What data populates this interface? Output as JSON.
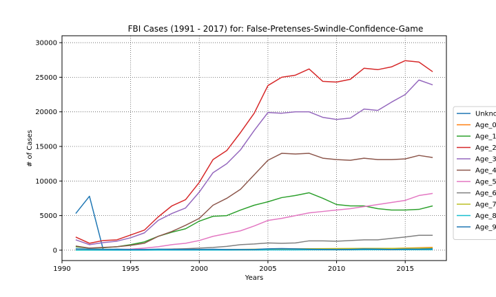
{
  "chart_data": {
    "type": "line",
    "title": "FBI Cases (1991 - 2017) for: False-Pretenses-Swindle-Confidence-Game",
    "xlabel": "Years",
    "ylabel": "# of Cases",
    "xlim": [
      1990,
      2018
    ],
    "ylim": [
      -1500,
      31000
    ],
    "xticks": [
      1990,
      1995,
      2000,
      2005,
      2010,
      2015
    ],
    "yticks": [
      0,
      5000,
      10000,
      15000,
      20000,
      25000,
      30000
    ],
    "grid": true,
    "grid_style": "dotted",
    "legend_position": "right (clipped)",
    "x": [
      1991,
      1992,
      1993,
      1994,
      1995,
      1996,
      1997,
      1998,
      1999,
      2000,
      2001,
      2002,
      2003,
      2004,
      2005,
      2006,
      2007,
      2008,
      2009,
      2010,
      2011,
      2012,
      2013,
      2014,
      2015,
      2016,
      2017
    ],
    "series": [
      {
        "name": "Unkno",
        "color": "#1f77b4",
        "values": [
          5300,
          7800,
          100,
          150,
          100,
          100,
          100,
          100,
          100,
          100,
          100,
          80,
          80,
          80,
          150,
          150,
          100,
          100,
          100,
          80,
          80,
          100,
          100,
          80,
          80,
          100,
          100
        ]
      },
      {
        "name": "Age_0",
        "color": "#ff7f0e",
        "values": [
          20,
          20,
          20,
          20,
          20,
          20,
          20,
          20,
          30,
          30,
          30,
          30,
          40,
          50,
          60,
          70,
          80,
          100,
          120,
          150,
          170,
          200,
          220,
          250,
          300,
          350,
          400
        ]
      },
      {
        "name": "Age_1",
        "color": "#2ca02c",
        "values": [
          500,
          300,
          350,
          500,
          800,
          1200,
          2000,
          2600,
          3100,
          4200,
          4900,
          5000,
          5800,
          6500,
          7000,
          7600,
          7900,
          8300,
          7500,
          6600,
          6400,
          6400,
          6000,
          5800,
          5800,
          5900,
          6400
        ]
      },
      {
        "name": "Age_2",
        "color": "#d62728",
        "values": [
          1900,
          1000,
          1400,
          1500,
          2200,
          2900,
          4800,
          6400,
          7300,
          9800,
          13100,
          14400,
          17000,
          19800,
          23800,
          25000,
          25300,
          26200,
          24400,
          24300,
          24700,
          26300,
          26100,
          26500,
          27400,
          27200,
          25800
        ]
      },
      {
        "name": "Age_3",
        "color": "#9467bd",
        "values": [
          1500,
          800,
          1100,
          1300,
          1800,
          2500,
          4300,
          5300,
          6100,
          8400,
          11200,
          12500,
          14500,
          17300,
          19900,
          19800,
          20000,
          20000,
          19200,
          18900,
          19100,
          20400,
          20200,
          21400,
          22500,
          24600,
          23900
        ]
      },
      {
        "name": "Age_4",
        "color": "#8c564b",
        "values": [
          600,
          300,
          400,
          500,
          700,
          1000,
          2000,
          2700,
          3600,
          4600,
          6500,
          7500,
          8800,
          10900,
          13000,
          14000,
          13900,
          14000,
          13300,
          13100,
          13000,
          13300,
          13100,
          13100,
          13200,
          13700,
          13400
        ]
      },
      {
        "name": "Age_5",
        "color": "#e377c2",
        "values": [
          100,
          50,
          80,
          100,
          150,
          300,
          500,
          800,
          1000,
          1400,
          2000,
          2400,
          2800,
          3500,
          4300,
          4600,
          5000,
          5400,
          5600,
          5800,
          6000,
          6300,
          6600,
          6900,
          7200,
          7900,
          8200
        ]
      },
      {
        "name": "Age_6",
        "color": "#7f7f7f",
        "values": [
          30,
          20,
          30,
          40,
          50,
          80,
          120,
          170,
          220,
          300,
          400,
          550,
          800,
          900,
          1050,
          1000,
          1050,
          1350,
          1350,
          1300,
          1400,
          1500,
          1500,
          1700,
          1900,
          2150,
          2150
        ]
      },
      {
        "name": "Age_7",
        "color": "#bcbd22",
        "values": [
          10,
          10,
          10,
          10,
          10,
          20,
          30,
          40,
          50,
          60,
          80,
          100,
          120,
          140,
          170,
          190,
          200,
          220,
          230,
          240,
          250,
          260,
          260,
          270,
          280,
          300,
          320
        ]
      },
      {
        "name": "Age_8",
        "color": "#17becf",
        "values": [
          5,
          5,
          5,
          5,
          5,
          5,
          10,
          10,
          10,
          15,
          20,
          20,
          25,
          30,
          35,
          40,
          45,
          50,
          50,
          55,
          55,
          60,
          60,
          60,
          65,
          70,
          70
        ]
      },
      {
        "name": "Age_9",
        "color": "#1f77b4",
        "values": [
          200,
          150,
          130,
          120,
          100,
          100,
          150,
          120,
          100,
          120,
          140,
          100,
          100,
          100,
          200,
          240,
          200,
          140,
          120,
          100,
          120,
          180,
          150,
          100,
          150,
          150,
          200
        ]
      }
    ]
  }
}
